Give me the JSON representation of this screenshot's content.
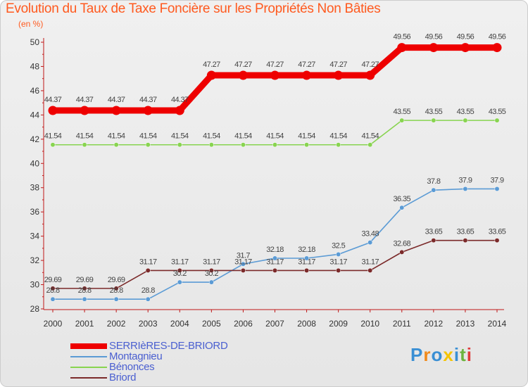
{
  "title": "Evolution du Taux de Taxe Foncière sur les Propriétés Non Bâties",
  "unit": "(en %)",
  "logo": {
    "letters": [
      "P",
      "r",
      "o",
      "x",
      "i",
      "t",
      "i"
    ],
    "colors": [
      "#3a8fd4",
      "#f08a1c",
      "#3a8fd4",
      "#f5c400",
      "#3a8fd4",
      "#6cb33e",
      "#e03a3a"
    ]
  },
  "chart_data": {
    "type": "line",
    "title": "Evolution du Taux de Taxe Foncière sur les Propriétés Non Bâties",
    "ylabel": "(en %)",
    "xlabel": "",
    "ylim": [
      28,
      50
    ],
    "yticks": [
      28,
      30,
      32,
      34,
      36,
      38,
      40,
      42,
      44,
      46,
      48,
      50
    ],
    "x": [
      "2000",
      "2001",
      "2002",
      "2003",
      "2004",
      "2005",
      "2006",
      "2007",
      "2008",
      "2009",
      "2010",
      "2011",
      "2012",
      "2013",
      "2014"
    ],
    "series": [
      {
        "name": "SERRIèRES-DE-BRIORD",
        "color": "#ee0000",
        "values": [
          44.37,
          44.37,
          44.37,
          44.37,
          44.37,
          47.27,
          47.27,
          47.27,
          47.27,
          47.27,
          47.27,
          49.56,
          49.56,
          49.56,
          49.56
        ],
        "labels": [
          "44.37",
          "44.37",
          "44.37",
          "44.37",
          "44.37",
          "47.27",
          "47.27",
          "47.27",
          "47.27",
          "47.27",
          "47.27",
          "49.56",
          "49.56",
          "49.56",
          "49.56"
        ]
      },
      {
        "name": "Montagnieu",
        "color": "#5b9bd5",
        "values": [
          28.8,
          28.8,
          28.8,
          28.8,
          30.2,
          30.2,
          31.7,
          32.18,
          32.18,
          32.5,
          33.48,
          36.35,
          37.8,
          37.9,
          37.9
        ],
        "labels": [
          "28.8",
          "28.8",
          "28.8",
          "28.8",
          "30.2",
          "30.2",
          "31.7",
          "32.18",
          "32.18",
          "32.5",
          "33.48",
          "36.35",
          "37.8",
          "37.9",
          "37.9"
        ]
      },
      {
        "name": "Bénonces",
        "color": "#88d450",
        "values": [
          41.54,
          41.54,
          41.54,
          41.54,
          41.54,
          41.54,
          41.54,
          41.54,
          41.54,
          41.54,
          41.54,
          43.55,
          43.55,
          43.55,
          43.55
        ],
        "labels": [
          "41.54",
          "41.54",
          "41.54",
          "41.54",
          "41.54",
          "41.54",
          "41.54",
          "41.54",
          "41.54",
          "41.54",
          "41.54",
          "43.55",
          "43.55",
          "43.55",
          "43.55"
        ]
      },
      {
        "name": "Briord",
        "color": "#7b2a2a",
        "values": [
          29.69,
          29.69,
          29.69,
          31.17,
          31.17,
          31.17,
          31.17,
          31.17,
          31.17,
          31.17,
          31.17,
          32.68,
          33.65,
          33.65,
          33.65
        ],
        "labels": [
          "29.69",
          "29.69",
          "29.69",
          "31.17",
          "31.17",
          "31.17",
          "31.17",
          "31.17",
          "31.17",
          "31.17",
          "31.17",
          "32.68",
          "33.65",
          "33.65",
          "33.65"
        ]
      }
    ],
    "grid": false,
    "legend": "bottom-left"
  }
}
